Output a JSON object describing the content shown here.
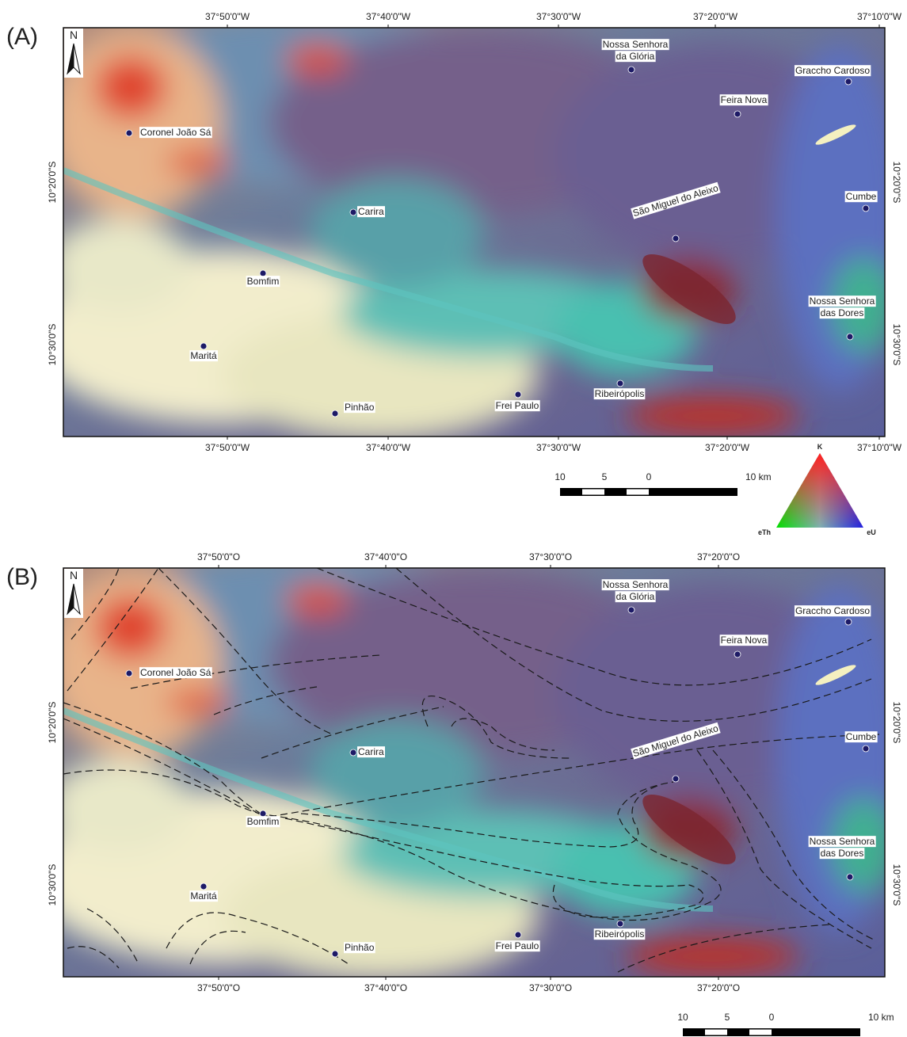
{
  "panels": [
    {
      "label": "(A)",
      "north": "N",
      "lon_top": [
        "37°50'0\"W",
        "37°40'0\"W",
        "37°30'0\"W",
        "37°20'0\"W",
        "37°10'0\"W"
      ],
      "lon_bottom": [
        "37°50'0\"W",
        "37°40'0\"W",
        "37°30'0\"W",
        "37°20'0\"W",
        "37°10'0\"W"
      ],
      "lat_left": [
        "10°20'0\"S",
        "10°30'0\"S"
      ],
      "lat_right": [
        "10°20'0\"S",
        "10°30'0\"S"
      ],
      "towns": [
        {
          "name": [
            "Coronel João Sá"
          ]
        },
        {
          "name": [
            "Carira"
          ]
        },
        {
          "name": [
            "Bomfim"
          ]
        },
        {
          "name": [
            "Maritá"
          ]
        },
        {
          "name": [
            "Pinhão"
          ]
        },
        {
          "name": [
            "Frei Paulo"
          ]
        },
        {
          "name": [
            "Ribeirópolis"
          ]
        },
        {
          "name": [
            "São Miguel do Aleixo"
          ]
        },
        {
          "name": [
            "Nossa Senhora",
            "da Glória"
          ]
        },
        {
          "name": [
            "Feira Nova"
          ]
        },
        {
          "name": [
            "Graccho Cardoso"
          ]
        },
        {
          "name": [
            "Cumbe"
          ]
        },
        {
          "name": [
            "Nossa Senhora",
            "das Dores"
          ]
        }
      ],
      "scale_bar": [
        "10",
        "5",
        "0",
        "10 km"
      ]
    },
    {
      "label": "(B)",
      "north": "N",
      "lon_top": [
        "37°50'0\"O",
        "37°40'0\"O",
        "37°30'0\"O",
        "37°20'0\"O"
      ],
      "lon_bottom": [
        "37°50'0\"O",
        "37°40'0\"O",
        "37°30'0\"O",
        "37°20'0\"O"
      ],
      "lat_left": [
        "10°20'0\"S",
        "10°30'0\"S"
      ],
      "lat_right": [
        "10°20'0\"S",
        "10°30'0\"S"
      ],
      "towns": [
        {
          "name": [
            "Coronel João Sá"
          ]
        },
        {
          "name": [
            "Carira"
          ]
        },
        {
          "name": [
            "Bomfim"
          ]
        },
        {
          "name": [
            "Maritá"
          ]
        },
        {
          "name": [
            "Pinhão"
          ]
        },
        {
          "name": [
            "Frei Paulo"
          ]
        },
        {
          "name": [
            "Ribeirópolis"
          ]
        },
        {
          "name": [
            "São Miguel do Aleixo"
          ]
        },
        {
          "name": [
            "Nossa Senhora",
            "da Glória"
          ]
        },
        {
          "name": [
            "Feira Nova"
          ]
        },
        {
          "name": [
            "Graccho Cardoso"
          ]
        },
        {
          "name": [
            "Cumbe"
          ]
        },
        {
          "name": [
            "Nossa Senhora",
            "das Dores"
          ]
        }
      ],
      "scale_bar": [
        "10",
        "5",
        "0",
        "10 km"
      ]
    }
  ],
  "legend": {
    "top": "K",
    "left": "eTh",
    "right": "eU"
  }
}
